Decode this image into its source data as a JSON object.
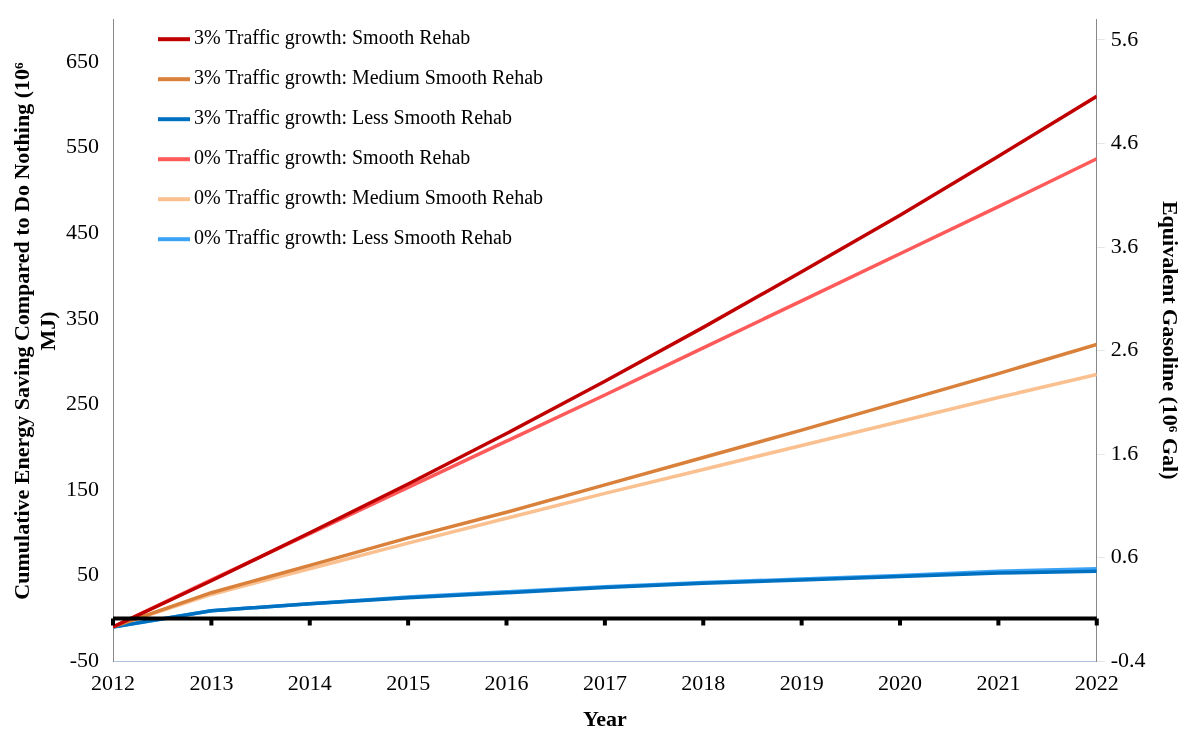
{
  "chart_data": {
    "type": "line",
    "xlabel": "Year",
    "ylabel": "Cumulative Energy Saving Compared to Do Nothing (10⁶ MJ)",
    "y2label": "Equivalent Gasoline (10⁶ Gal)",
    "x": [
      2012,
      2013,
      2014,
      2015,
      2016,
      2017,
      2018,
      2019,
      2020,
      2021,
      2022
    ],
    "xlim": [
      2012,
      2022
    ],
    "xticks": [
      2012,
      2013,
      2014,
      2015,
      2016,
      2017,
      2018,
      2019,
      2020,
      2021,
      2022
    ],
    "ylim": [
      -50,
      700
    ],
    "yticks": [
      -50,
      50,
      150,
      250,
      350,
      450,
      550,
      650
    ],
    "y2lim": [
      -0.4,
      5.8
    ],
    "y2ticks": [
      -0.4,
      0.6,
      1.6,
      2.6,
      3.6,
      4.6,
      5.6
    ],
    "series": [
      {
        "name": "3% Traffic growth: Smooth Rehab",
        "color": "#c00000",
        "values": [
          -10,
          44,
          100,
          157,
          216,
          277,
          340,
          405,
          471,
          540,
          610
        ]
      },
      {
        "name": "3% Traffic growth: Medium Smooth Rehab",
        "color": "#d9803a",
        "values": [
          -10,
          30,
          62,
          94,
          124,
          156,
          188,
          220,
          253,
          286,
          320
        ]
      },
      {
        "name": "3% Traffic growth: Less Smooth Rehab",
        "color": "#0070c0",
        "values": [
          -10,
          9,
          17,
          24,
          30,
          36,
          41,
          45,
          49,
          53,
          55
        ]
      },
      {
        "name": "0% Traffic growth: Smooth Rehab",
        "color": "#ff5a5a",
        "values": [
          -10,
          45,
          99,
          153,
          207,
          261,
          316,
          371,
          426,
          481,
          537
        ]
      },
      {
        "name": "0% Traffic growth: Medium Smooth Rehab",
        "color": "#fac090",
        "values": [
          -10,
          28,
          58,
          88,
          117,
          146,
          174,
          202,
          230,
          258,
          285
        ]
      },
      {
        "name": "0% Traffic growth: Less Smooth Rehab",
        "color": "#3ba3f5",
        "values": [
          -10,
          9,
          17,
          25,
          31,
          37,
          42,
          46,
          50,
          55,
          58
        ]
      }
    ],
    "ref_lines": [
      {
        "axis": "y",
        "value": 0,
        "color": "#000000"
      }
    ],
    "legend": "top left",
    "grid": false,
    "marker": "none",
    "line_style": "solid"
  }
}
